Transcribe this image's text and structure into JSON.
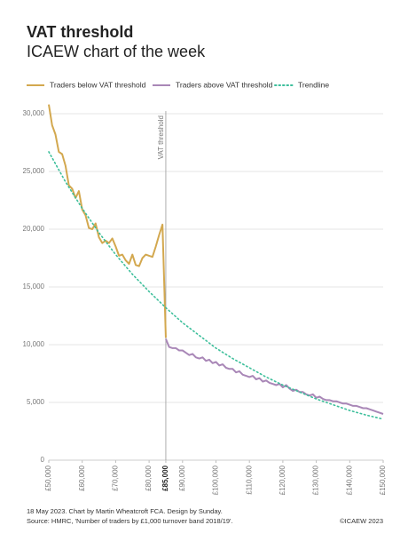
{
  "chart_data": {
    "type": "line",
    "title": "VAT threshold",
    "subtitle": "ICAEW chart of the week",
    "footnote": "18 May 2023.   Chart by Martin Wheatcroft FCA. Design by Sunday.",
    "source": "Source: HMRC, 'Number of traders by £1,000 turnover band 2018/19'.",
    "copyright": "©ICAEW 2023",
    "xlim": [
      50000,
      150000
    ],
    "ylim": [
      0,
      31000
    ],
    "xticks": [
      {
        "value": 50000,
        "label": "£50,000"
      },
      {
        "value": 60000,
        "label": "£60,000"
      },
      {
        "value": 70000,
        "label": "£70,000"
      },
      {
        "value": 80000,
        "label": "£80,000"
      },
      {
        "value": 85000,
        "label": "£85,000"
      },
      {
        "value": 90000,
        "label": "£90,000"
      },
      {
        "value": 100000,
        "label": "£100,000"
      },
      {
        "value": 110000,
        "label": "£110,000"
      },
      {
        "value": 120000,
        "label": "£120,000"
      },
      {
        "value": 130000,
        "label": "£130,000"
      },
      {
        "value": 140000,
        "label": "£140,000"
      },
      {
        "value": 150000,
        "label": "£150,000"
      }
    ],
    "yticks": [
      0,
      {
        "value": 5000,
        "label": "5,000"
      },
      {
        "value": 10000,
        "label": "10,000"
      },
      {
        "value": 15000,
        "label": "15,000"
      },
      {
        "value": 20000,
        "label": "20,000"
      },
      {
        "value": 25000,
        "label": "25,000"
      },
      {
        "value": 30000,
        "label": "30,000"
      }
    ],
    "grid": true,
    "legend": "top",
    "threshold": {
      "text": "VAT threshold",
      "x": 85000
    },
    "series": [
      {
        "name": "Traders below VAT threshold",
        "color": "#d3a84f",
        "style": "solid",
        "x": [
          50000,
          51000,
          52000,
          53000,
          54000,
          55000,
          56000,
          57000,
          58000,
          59000,
          60000,
          61000,
          62000,
          63000,
          64000,
          65000,
          66000,
          67000,
          68000,
          69000,
          70000,
          71000,
          72000,
          73000,
          74000,
          75000,
          76000,
          77000,
          78000,
          79000,
          80000,
          81000,
          82000,
          83000,
          84000,
          85000
        ],
        "values": [
          30800,
          29000,
          28200,
          26700,
          26500,
          25500,
          23800,
          23500,
          22700,
          23300,
          21700,
          21200,
          20100,
          20000,
          20500,
          19300,
          18800,
          19000,
          18800,
          19200,
          18500,
          17700,
          17800,
          17300,
          17000,
          17800,
          16900,
          16800,
          17500,
          17800,
          17700,
          17600,
          18500,
          19500,
          20400,
          10600
        ]
      },
      {
        "name": "Traders above VAT threshold",
        "color": "#a987b7",
        "style": "solid",
        "x": [
          85000,
          86000,
          87000,
          88000,
          89000,
          90000,
          91000,
          92000,
          93000,
          94000,
          95000,
          96000,
          97000,
          98000,
          99000,
          100000,
          101000,
          102000,
          103000,
          104000,
          105000,
          106000,
          107000,
          108000,
          109000,
          110000,
          111000,
          112000,
          113000,
          114000,
          115000,
          116000,
          117000,
          118000,
          119000,
          120000,
          121000,
          122000,
          123000,
          124000,
          125000,
          126000,
          127000,
          128000,
          129000,
          130000,
          131000,
          132000,
          133000,
          134000,
          135000,
          136000,
          137000,
          138000,
          139000,
          140000,
          141000,
          142000,
          143000,
          144000,
          145000,
          146000,
          147000,
          148000,
          149000,
          150000
        ],
        "values": [
          10500,
          9800,
          9700,
          9700,
          9500,
          9500,
          9300,
          9100,
          9200,
          8900,
          8800,
          8900,
          8600,
          8700,
          8400,
          8500,
          8200,
          8300,
          8000,
          7900,
          7900,
          7600,
          7700,
          7400,
          7300,
          7200,
          7300,
          7000,
          7100,
          6800,
          6900,
          6700,
          6600,
          6500,
          6600,
          6300,
          6500,
          6200,
          6000,
          6100,
          5900,
          5900,
          5700,
          5600,
          5700,
          5400,
          5500,
          5300,
          5200,
          5200,
          5100,
          5100,
          5000,
          4900,
          4900,
          4800,
          4700,
          4700,
          4600,
          4500,
          4500,
          4400,
          4300,
          4200,
          4100,
          4000
        ]
      },
      {
        "name": "Trendline",
        "color": "#3dbf9b",
        "style": "dotted",
        "x": [
          50000,
          55000,
          60000,
          65000,
          70000,
          75000,
          80000,
          85000,
          90000,
          95000,
          100000,
          105000,
          110000,
          115000,
          120000,
          125000,
          130000,
          135000,
          140000,
          145000,
          150000
        ],
        "values": [
          26700,
          24100,
          21800,
          19700,
          17800,
          16100,
          14600,
          13200,
          11900,
          10800,
          9700,
          8800,
          8000,
          7200,
          6500,
          5900,
          5300,
          4800,
          4300,
          3900,
          3550
        ]
      }
    ]
  }
}
